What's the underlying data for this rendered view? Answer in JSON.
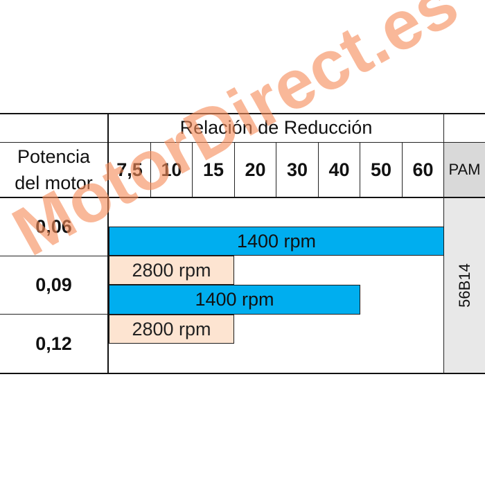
{
  "table": {
    "header_title": "Relación de Reducción",
    "power_header_line1": "Potencia",
    "power_header_line2": "del motor",
    "ratios": [
      "7,5",
      "10",
      "15",
      "20",
      "30",
      "40",
      "50",
      "60"
    ],
    "pam_header": "PAM",
    "pam_value": "56B14",
    "powers": [
      "0,06",
      "0,09",
      "0,12"
    ]
  },
  "bars": [
    {
      "label": "1400 rpm",
      "power": "0,06",
      "from_ratio": "7,5",
      "to_ratio": "60",
      "color": "#00aeef"
    },
    {
      "label": "2800 rpm",
      "power": "0,09",
      "from_ratio": "7,5",
      "to_ratio": "15",
      "color": "#fde4d1"
    },
    {
      "label": "1400 rpm",
      "power": "0,09",
      "from_ratio": "7,5",
      "to_ratio": "40",
      "color": "#00aeef"
    },
    {
      "label": "2800 rpm",
      "power": "0,12",
      "from_ratio": "7,5",
      "to_ratio": "15",
      "color": "#fde4d1"
    }
  ],
  "watermark": "MotorDirect.es"
}
